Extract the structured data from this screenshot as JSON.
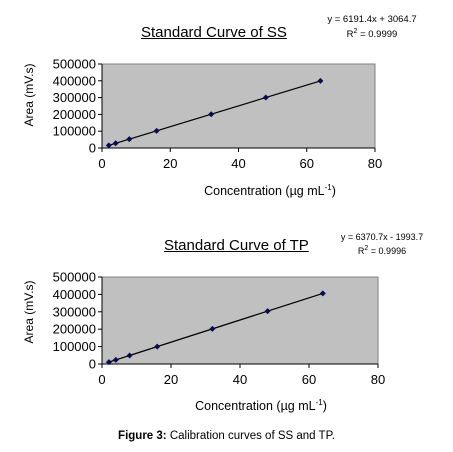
{
  "caption": {
    "label": "Figure 3:",
    "text": "Calibration curves of SS and TP."
  },
  "chart_data": [
    {
      "type": "scatter",
      "title": "Standard Curve of SS",
      "equation": "y = 6191.4x + 3064.7",
      "r2_label": "R",
      "r2_exp": "2",
      "r2_value": " = 0.9999",
      "xlabel_main": "Concentration (µg mL",
      "xlabel_sup": "-1",
      "xlabel_end": ")",
      "ylabel": "Area (mV.s)",
      "xlim": [
        0,
        80
      ],
      "ylim": [
        0,
        500000
      ],
      "xticks": [
        "0",
        "20",
        "40",
        "60",
        "80"
      ],
      "yticks": [
        "0",
        "100000",
        "200000",
        "300000",
        "400000",
        "500000"
      ],
      "series": [
        {
          "x": [
            2,
            4,
            8,
            16,
            32,
            48,
            64
          ],
          "y": [
            15500,
            28000,
            52600,
            102100,
            201200,
            300300,
            399300
          ]
        }
      ],
      "trendline": {
        "slope": 6191.4,
        "intercept": 3064.7
      },
      "grid": false,
      "plot_background": "#c0c0c0",
      "marker_color": "#0a0a50"
    },
    {
      "type": "scatter",
      "title": "Standard Curve of TP",
      "equation": "y = 6370.7x - 1993.7",
      "r2_label": "R",
      "r2_exp": "2",
      "r2_value": " = 0.9996",
      "xlabel_main": "Concentration (µg mL",
      "xlabel_sup": "-1",
      "xlabel_end": ")",
      "ylabel": "Area (mV.s)",
      "xlim": [
        0,
        80
      ],
      "ylim": [
        0,
        500000
      ],
      "xticks": [
        "0",
        "20",
        "40",
        "60",
        "80"
      ],
      "yticks": [
        "0",
        "100000",
        "200000",
        "300000",
        "400000",
        "500000"
      ],
      "series": [
        {
          "x": [
            2,
            4,
            8,
            16,
            32,
            48,
            64
          ],
          "y": [
            10700,
            23500,
            49000,
            100000,
            201900,
            303800,
            405700
          ]
        }
      ],
      "trendline": {
        "slope": 6370.7,
        "intercept": -1993.7
      },
      "grid": false,
      "plot_background": "#c0c0c0",
      "marker_color": "#0a0a50"
    }
  ]
}
